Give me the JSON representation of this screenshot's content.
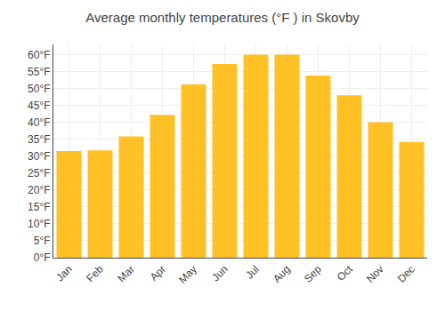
{
  "chart_data": {
    "type": "bar",
    "title": "Average monthly temperatures (°F ) in Skovby",
    "categories": [
      "Jan",
      "Feb",
      "Mar",
      "Apr",
      "May",
      "Jun",
      "Jul",
      "Aug",
      "Sep",
      "Oct",
      "Nov",
      "Dec"
    ],
    "values": [
      31.5,
      31.7,
      35.8,
      42.2,
      51.2,
      57.2,
      60.0,
      60.0,
      53.8,
      48.0,
      40.0,
      34.2
    ],
    "color": "#FFC125",
    "ylim": [
      0,
      63
    ],
    "yticks": [
      {
        "value": 0,
        "label": "0°F"
      },
      {
        "value": 5,
        "label": "5°F"
      },
      {
        "value": 10,
        "label": "10°F"
      },
      {
        "value": 15,
        "label": "15°F"
      },
      {
        "value": 20,
        "label": "20°F"
      },
      {
        "value": 25,
        "label": "25°F"
      },
      {
        "value": 30,
        "label": "30°F"
      },
      {
        "value": 35,
        "label": "35°F"
      },
      {
        "value": 40,
        "label": "40°F"
      },
      {
        "value": 45,
        "label": "45°F"
      },
      {
        "value": 50,
        "label": "50°F"
      },
      {
        "value": 55,
        "label": "55°F"
      },
      {
        "value": 60,
        "label": "60°F"
      }
    ],
    "grid": true
  }
}
